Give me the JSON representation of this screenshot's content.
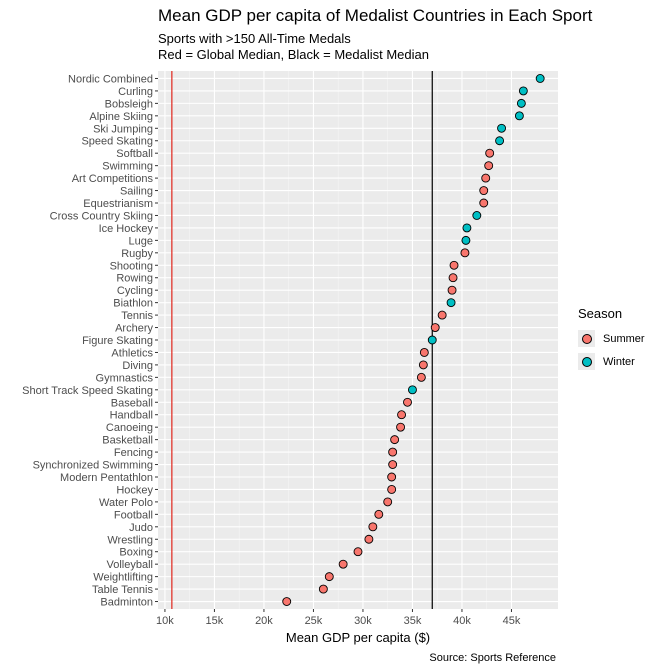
{
  "chart_data": {
    "type": "scatter",
    "title": "Mean GDP per capita of Medalist Countries in Each Sport",
    "subtitle": "Sports with >150 All-Time Medals\nRed = Global Median, Black = Medalist Median",
    "xlabel": "Mean GDP per capita ($)",
    "ylabel": "",
    "caption": "Source: Sports Reference",
    "xlim": [
      9300,
      49700
    ],
    "x_ticks": [
      10000,
      15000,
      20000,
      25000,
      30000,
      35000,
      40000,
      45000
    ],
    "x_tick_labels": [
      "10k",
      "15k",
      "20k",
      "25k",
      "30k",
      "35k",
      "40k",
      "45k"
    ],
    "reference_lines": [
      {
        "name": "Global Median",
        "value": 10700,
        "color": "#e0261d"
      },
      {
        "name": "Medalist Median",
        "value": 37000,
        "color": "#000000"
      }
    ],
    "legend": {
      "title": "Season",
      "placement": "right",
      "entries": [
        {
          "name": "Summer",
          "color": "#f8766d"
        },
        {
          "name": "Winter",
          "color": "#00bfc4"
        }
      ]
    },
    "points": [
      {
        "sport": "Nordic Combined",
        "value": 47900,
        "season": "Winter"
      },
      {
        "sport": "Curling",
        "value": 46200,
        "season": "Winter"
      },
      {
        "sport": "Bobsleigh",
        "value": 46000,
        "season": "Winter"
      },
      {
        "sport": "Alpine Skiing",
        "value": 45800,
        "season": "Winter"
      },
      {
        "sport": "Ski Jumping",
        "value": 44000,
        "season": "Winter"
      },
      {
        "sport": "Speed Skating",
        "value": 43800,
        "season": "Winter"
      },
      {
        "sport": "Softball",
        "value": 42800,
        "season": "Summer"
      },
      {
        "sport": "Swimming",
        "value": 42700,
        "season": "Summer"
      },
      {
        "sport": "Art Competitions",
        "value": 42400,
        "season": "Summer"
      },
      {
        "sport": "Sailing",
        "value": 42200,
        "season": "Summer"
      },
      {
        "sport": "Equestrianism",
        "value": 42200,
        "season": "Summer"
      },
      {
        "sport": "Cross Country Skiing",
        "value": 41500,
        "season": "Winter"
      },
      {
        "sport": "Ice Hockey",
        "value": 40500,
        "season": "Winter"
      },
      {
        "sport": "Luge",
        "value": 40400,
        "season": "Winter"
      },
      {
        "sport": "Rugby",
        "value": 40300,
        "season": "Summer"
      },
      {
        "sport": "Shooting",
        "value": 39200,
        "season": "Summer"
      },
      {
        "sport": "Rowing",
        "value": 39100,
        "season": "Summer"
      },
      {
        "sport": "Cycling",
        "value": 39000,
        "season": "Summer"
      },
      {
        "sport": "Biathlon",
        "value": 38900,
        "season": "Winter"
      },
      {
        "sport": "Tennis",
        "value": 38000,
        "season": "Summer"
      },
      {
        "sport": "Archery",
        "value": 37300,
        "season": "Summer"
      },
      {
        "sport": "Figure Skating",
        "value": 37000,
        "season": "Winter"
      },
      {
        "sport": "Athletics",
        "value": 36200,
        "season": "Summer"
      },
      {
        "sport": "Diving",
        "value": 36100,
        "season": "Summer"
      },
      {
        "sport": "Gymnastics",
        "value": 35900,
        "season": "Summer"
      },
      {
        "sport": "Short Track Speed Skating",
        "value": 35000,
        "season": "Winter"
      },
      {
        "sport": "Baseball",
        "value": 34500,
        "season": "Summer"
      },
      {
        "sport": "Handball",
        "value": 33900,
        "season": "Summer"
      },
      {
        "sport": "Canoeing",
        "value": 33800,
        "season": "Summer"
      },
      {
        "sport": "Basketball",
        "value": 33200,
        "season": "Summer"
      },
      {
        "sport": "Fencing",
        "value": 33000,
        "season": "Summer"
      },
      {
        "sport": "Synchronized Swimming",
        "value": 33000,
        "season": "Summer"
      },
      {
        "sport": "Modern Pentathlon",
        "value": 32900,
        "season": "Summer"
      },
      {
        "sport": "Hockey",
        "value": 32900,
        "season": "Summer"
      },
      {
        "sport": "Water Polo",
        "value": 32500,
        "season": "Summer"
      },
      {
        "sport": "Football",
        "value": 31600,
        "season": "Summer"
      },
      {
        "sport": "Judo",
        "value": 31000,
        "season": "Summer"
      },
      {
        "sport": "Wrestling",
        "value": 30600,
        "season": "Summer"
      },
      {
        "sport": "Boxing",
        "value": 29500,
        "season": "Summer"
      },
      {
        "sport": "Volleyball",
        "value": 28000,
        "season": "Summer"
      },
      {
        "sport": "Weightlifting",
        "value": 26600,
        "season": "Summer"
      },
      {
        "sport": "Table Tennis",
        "value": 26000,
        "season": "Summer"
      },
      {
        "sport": "Badminton",
        "value": 22300,
        "season": "Summer"
      }
    ]
  }
}
